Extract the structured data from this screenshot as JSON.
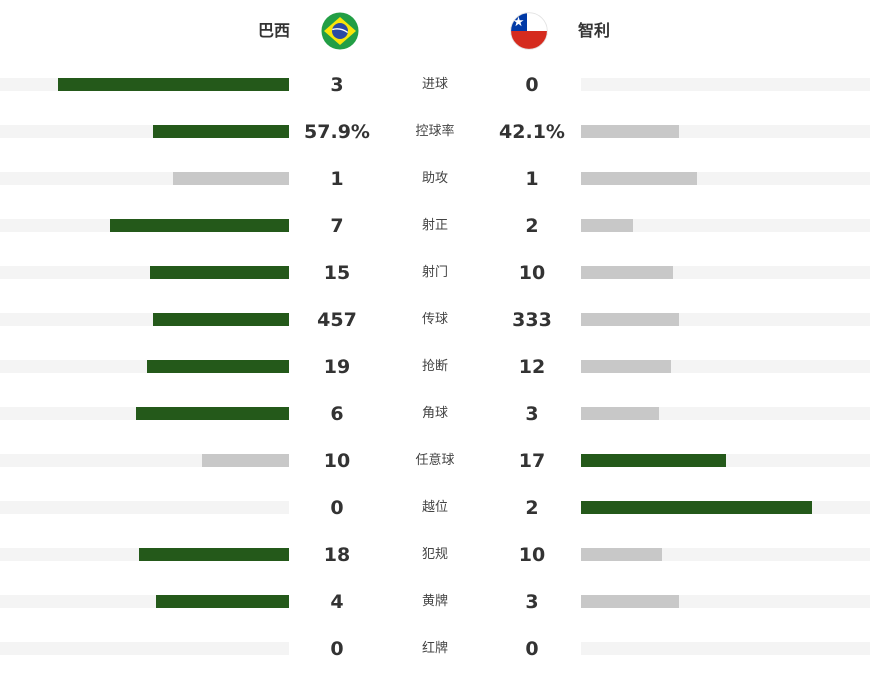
{
  "teams": {
    "home": {
      "name": "巴西",
      "flag_icon": "brazil-flag-icon"
    },
    "away": {
      "name": "智利",
      "flag_icon": "chile-flag-icon"
    }
  },
  "colors": {
    "leader_bar": "#24591a",
    "trailer_bar": "#c8c8c8",
    "track": "#f4f4f4"
  },
  "stats": [
    {
      "label": "进球",
      "home": "3",
      "away": "0",
      "home_share": 0.8,
      "away_share": 0.0,
      "home_leads": true,
      "away_leads": false
    },
    {
      "label": "控球率",
      "home": "57.9%",
      "away": "42.1%",
      "home_share": 0.47,
      "away_share": 0.34,
      "home_leads": true,
      "away_leads": false
    },
    {
      "label": "助攻",
      "home": "1",
      "away": "1",
      "home_share": 0.4,
      "away_share": 0.4,
      "home_leads": false,
      "away_leads": false
    },
    {
      "label": "射正",
      "home": "7",
      "away": "2",
      "home_share": 0.62,
      "away_share": 0.18,
      "home_leads": true,
      "away_leads": false
    },
    {
      "label": "射门",
      "home": "15",
      "away": "10",
      "home_share": 0.48,
      "away_share": 0.32,
      "home_leads": true,
      "away_leads": false
    },
    {
      "label": "传球",
      "home": "457",
      "away": "333",
      "home_share": 0.47,
      "away_share": 0.34,
      "home_leads": true,
      "away_leads": false
    },
    {
      "label": "抢断",
      "home": "19",
      "away": "12",
      "home_share": 0.49,
      "away_share": 0.31,
      "home_leads": true,
      "away_leads": false
    },
    {
      "label": "角球",
      "home": "6",
      "away": "3",
      "home_share": 0.53,
      "away_share": 0.27,
      "home_leads": true,
      "away_leads": false
    },
    {
      "label": "任意球",
      "home": "10",
      "away": "17",
      "home_share": 0.3,
      "away_share": 0.5,
      "home_leads": false,
      "away_leads": true
    },
    {
      "label": "越位",
      "home": "0",
      "away": "2",
      "home_share": 0.0,
      "away_share": 0.8,
      "home_leads": false,
      "away_leads": true
    },
    {
      "label": "犯规",
      "home": "18",
      "away": "10",
      "home_share": 0.52,
      "away_share": 0.28,
      "home_leads": true,
      "away_leads": false
    },
    {
      "label": "黄牌",
      "home": "4",
      "away": "3",
      "home_share": 0.46,
      "away_share": 0.34,
      "home_leads": true,
      "away_leads": false
    },
    {
      "label": "红牌",
      "home": "0",
      "away": "0",
      "home_share": 0.0,
      "away_share": 0.0,
      "home_leads": false,
      "away_leads": false
    }
  ]
}
